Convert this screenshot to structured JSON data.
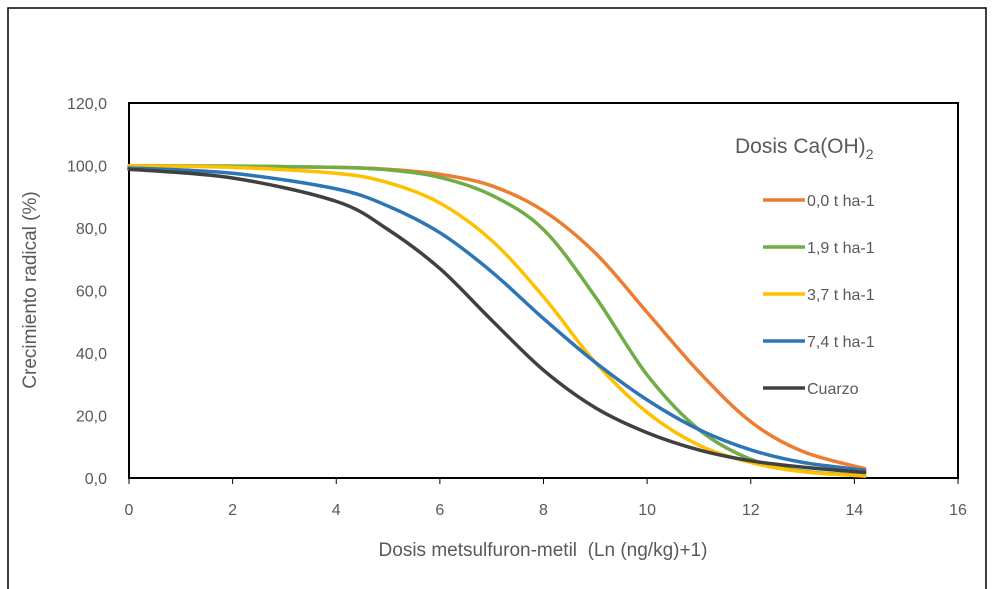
{
  "chart_data": {
    "type": "line",
    "title": "",
    "xlabel": "Dosis metsulfuron-metil  (Ln (ng/kg)+1)",
    "ylabel": "Crecimiento radical (%)",
    "xlim": [
      0,
      16
    ],
    "ylim": [
      0,
      120
    ],
    "x_ticks": [
      "0",
      "2",
      "4",
      "6",
      "8",
      "10",
      "12",
      "14",
      "16"
    ],
    "y_ticks": [
      "0,0",
      "20,0",
      "40,0",
      "60,0",
      "80,0",
      "100,0",
      "120,0"
    ],
    "grid": false,
    "legend": {
      "title_main": "Dosis Ca(OH)",
      "title_sub": "2",
      "position": "right"
    },
    "series": [
      {
        "name": "0,0 t ha-1",
        "color": "#ED7D31",
        "x": [
          0,
          2,
          4,
          5,
          6,
          7,
          8,
          9,
          10,
          11,
          12,
          13,
          14.2
        ],
        "y": [
          99.9,
          99.8,
          99.4,
          98.8,
          97.2,
          93.5,
          85.5,
          72.0,
          53.0,
          34.0,
          18.0,
          8.5,
          3.0
        ]
      },
      {
        "name": "1,9 t ha-1",
        "color": "#70AD47",
        "x": [
          0,
          2,
          4,
          5,
          6,
          7,
          8,
          9,
          10,
          11,
          12,
          13,
          14.2
        ],
        "y": [
          99.9,
          99.8,
          99.4,
          98.6,
          96.2,
          90.5,
          79.5,
          58.0,
          33.0,
          15.5,
          6.0,
          2.2,
          0.8
        ]
      },
      {
        "name": "3,7 t ha-1",
        "color": "#FFC000",
        "x": [
          0,
          2,
          4,
          5,
          6,
          7,
          8,
          9,
          10,
          11,
          12,
          13,
          14.2
        ],
        "y": [
          99.9,
          99.4,
          97.5,
          94.5,
          88.0,
          76.0,
          58.0,
          37.0,
          21.0,
          10.5,
          5.0,
          2.0,
          0.6
        ]
      },
      {
        "name": "7,4 t ha-1",
        "color": "#2E75B6",
        "x": [
          0,
          2,
          4,
          5,
          6,
          7,
          8,
          9,
          10,
          11,
          12,
          13,
          14.2
        ],
        "y": [
          99.2,
          97.5,
          92.5,
          87.0,
          78.5,
          66.0,
          51.0,
          37.0,
          25.0,
          15.5,
          9.0,
          5.0,
          2.5
        ]
      },
      {
        "name": "Cuarzo",
        "color": "#404040",
        "x": [
          0,
          2,
          4,
          5,
          6,
          7,
          8,
          9,
          10,
          11,
          12,
          13,
          14.2
        ],
        "y": [
          98.8,
          96.0,
          88.5,
          79.5,
          67.0,
          50.5,
          34.5,
          22.5,
          14.5,
          9.0,
          5.5,
          3.5,
          1.8
        ]
      }
    ]
  }
}
